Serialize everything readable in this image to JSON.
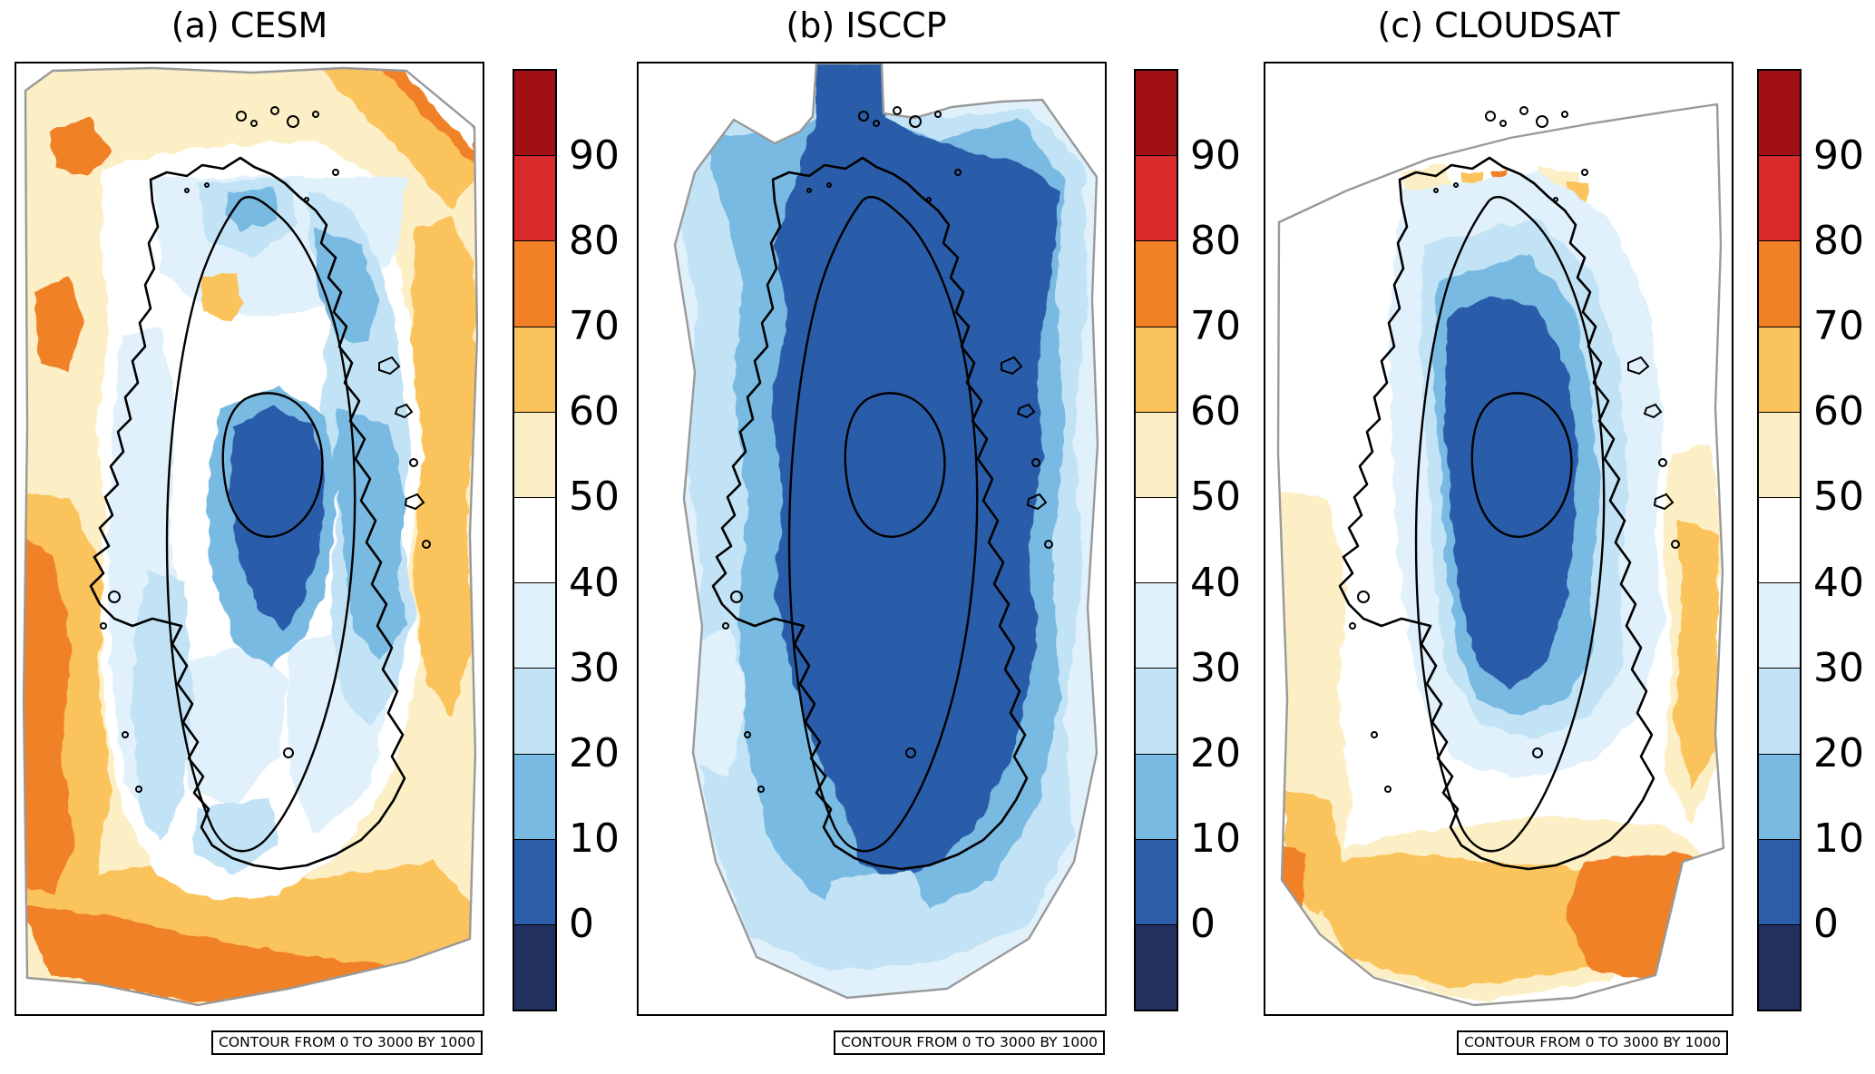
{
  "figure": {
    "region": "Greenland",
    "panels": [
      {
        "id": "a",
        "title": "(a) CESM",
        "contour_note": "CONTOUR FROM 0 TO 3000 BY 1000"
      },
      {
        "id": "b",
        "title": "(b) ISCCP",
        "contour_note": "CONTOUR FROM 0 TO 3000 BY 1000"
      },
      {
        "id": "c",
        "title": "(c) CLOUDSAT",
        "contour_note": "CONTOUR FROM 0 TO 3000 BY 1000"
      }
    ],
    "colorbar": {
      "tick_labels": [
        "90",
        "80",
        "70",
        "60",
        "50",
        "40",
        "30",
        "20",
        "10",
        "0"
      ],
      "bins": [
        {
          "range": ">90",
          "color": "#A11015"
        },
        {
          "range": "80-90",
          "color": "#D8292B"
        },
        {
          "range": "70-80",
          "color": "#F08126"
        },
        {
          "range": "60-70",
          "color": "#FBC35C"
        },
        {
          "range": "50-60",
          "color": "#FCEFC5"
        },
        {
          "range": "40-50",
          "color": "#FFFFFF"
        },
        {
          "range": "30-40",
          "color": "#E1F1FB"
        },
        {
          "range": "20-30",
          "color": "#C2E3F5"
        },
        {
          "range": "10-20",
          "color": "#79BAE2"
        },
        {
          "range": "0-10",
          "color": "#2C5DA9"
        },
        {
          "range": "<0",
          "color": "#22305F"
        }
      ]
    },
    "map_style": {
      "domain_boundary_color": "#999999",
      "elevation_contour_color": "#000000"
    }
  },
  "chart_data": {
    "type": "heatmap",
    "subtype": "filled-contour-map",
    "region": "Greenland",
    "panels": [
      {
        "label": "(a) CESM",
        "pattern": "50-80 (yellow/orange) over surrounding ocean, strongest orange along the southwest, west and bottom edges and a NE-corner diagonal stripe; 0-50 (white/blues) over the ice sheet with a 0-10 dark blue core just south of the 3000 m contour; small 50-70 patch in the central-west interior."
      },
      {
        "label": "(b) ISCCP",
        "pattern": "0-10 (dark blue) over almost the whole ice sheet extending to the northeast coast and a plume to the top edge; 10-40 blue fringes toward the domain edges; white (40-50) outside the jagged gray domain corners."
      },
      {
        "label": "(c) CLOUDSAT",
        "pattern": "0-10 (dark blue) core over the central/southern interior ringed by 10-40 blues; white (40-50) over the north and west; 50-70 (yellow/gold) over the southern and eastern ocean with 70-80 orange patches at the southeast corner and southwest edge; small 50-70 spots near the north coast."
      }
    ],
    "colorbar_levels": [
      0,
      10,
      20,
      30,
      40,
      50,
      60,
      70,
      80,
      90
    ],
    "colorbar_colors": [
      "#A11015",
      "#D8292B",
      "#F08126",
      "#FBC35C",
      "#FCEFC5",
      "#FFFFFF",
      "#E1F1FB",
      "#C2E3F5",
      "#79BAE2",
      "#2C5DA9",
      "#22305F"
    ],
    "elevation_contours_m": [
      0,
      1000,
      2000,
      3000
    ],
    "contour_annotation": "CONTOUR FROM 0 TO 3000 BY 1000",
    "legend_position": "right-of-each-panel"
  }
}
